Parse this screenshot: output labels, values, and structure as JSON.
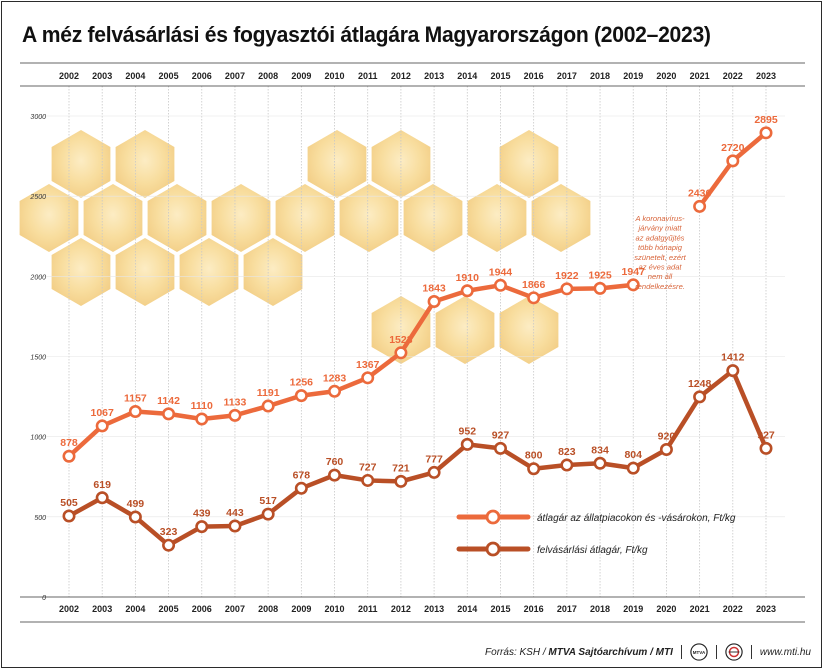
{
  "title": "A méz felvásárlási és fogyasztói átlagára Magyarországon (2002–2023)",
  "chart_data": {
    "type": "line",
    "title": "A méz felvásárlási és fogyasztói átlagára Magyarországon (2002–2023)",
    "categories": [
      "2002",
      "2003",
      "2004",
      "2005",
      "2006",
      "2007",
      "2008",
      "2009",
      "2010",
      "2011",
      "2012",
      "2013",
      "2014",
      "2015",
      "2016",
      "2017",
      "2018",
      "2019",
      "2020",
      "2021",
      "2022",
      "2023"
    ],
    "ylim": [
      0,
      3000
    ],
    "yticks": [
      0,
      500,
      1000,
      1500,
      2000,
      2500,
      3000
    ],
    "series": [
      {
        "name": "átlagár az állatpiacokon és -vásárokon, Ft/kg",
        "color": "#ec6a3c",
        "values": [
          878,
          1067,
          1157,
          1142,
          1110,
          1133,
          1191,
          1256,
          1283,
          1367,
          1523,
          1843,
          1910,
          1944,
          1866,
          1922,
          1925,
          1947,
          null,
          2436,
          2720,
          2895
        ]
      },
      {
        "name": "felvásárlási átlagár, Ft/kg",
        "color": "#b94f26",
        "values": [
          505,
          619,
          499,
          323,
          439,
          443,
          517,
          678,
          760,
          727,
          721,
          777,
          952,
          927,
          800,
          823,
          834,
          804,
          920,
          1248,
          1412,
          927
        ]
      }
    ],
    "annotation": "A koronavírus-járvány miatt az adatgyűjtés több hónapig szünetelt, ezért az éves adat nem áll rendelkezésre."
  },
  "footer": {
    "source": "Forrás: KSH / ",
    "archive": "MTVA Sajtóarchívum / MTI",
    "logo1": "MTVA",
    "website": "www.mti.hu"
  },
  "colors": {
    "text_dark": "#222222",
    "grid": "#c8c8c8",
    "honeycomb": "#f7d27a"
  }
}
